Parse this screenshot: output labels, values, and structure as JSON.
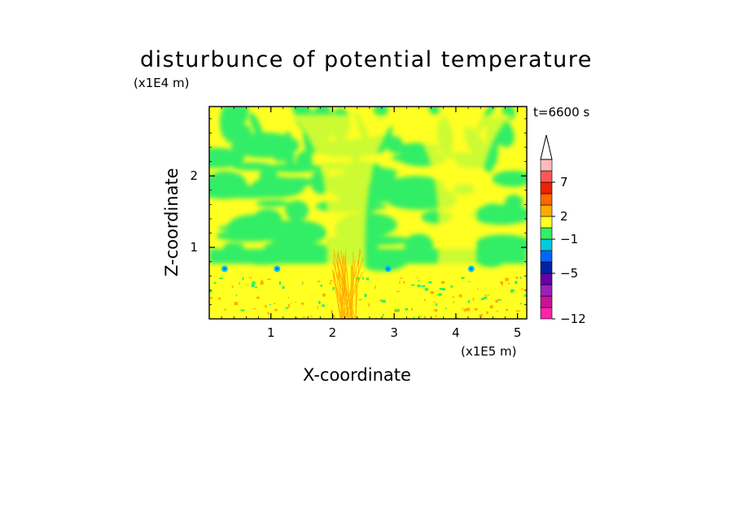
{
  "chart_data": {
    "type": "heatmap",
    "title": "disturbunce of potential temperature",
    "xlabel": "X-coordinate",
    "ylabel": "Z-coordinate",
    "x_unit": "(x1E5 m)",
    "y_unit": "(x1E4 m)",
    "time_label": "t=6600 s",
    "xlim": [
      0,
      5.15
    ],
    "ylim": [
      0,
      2.97
    ],
    "x_ticks": [
      1,
      2,
      3,
      4,
      5
    ],
    "y_ticks": [
      1,
      2
    ],
    "colorbar": {
      "levels": [
        -12,
        -5,
        -1,
        2,
        7
      ],
      "level_labels": [
        "−12",
        "−5",
        "−1",
        "2",
        "7"
      ],
      "colors": [
        "#ff22aa",
        "#cc1199",
        "#9922bb",
        "#6600aa",
        "#0022aa",
        "#0066ff",
        "#00ccdd",
        "#33ee66",
        "#ffff22",
        "#ffaa00",
        "#ff6600",
        "#ee2200",
        "#ff5555",
        "#ffbbbb"
      ],
      "extend": "max"
    },
    "field_summary": {
      "background_color": "#ffff22",
      "dominant_colors": [
        "#ffff22",
        "#33ee66"
      ],
      "near_surface_band": "#ffaa00",
      "cyan_spots_x": [
        0.25,
        1.1,
        2.9,
        4.25
      ]
    }
  }
}
